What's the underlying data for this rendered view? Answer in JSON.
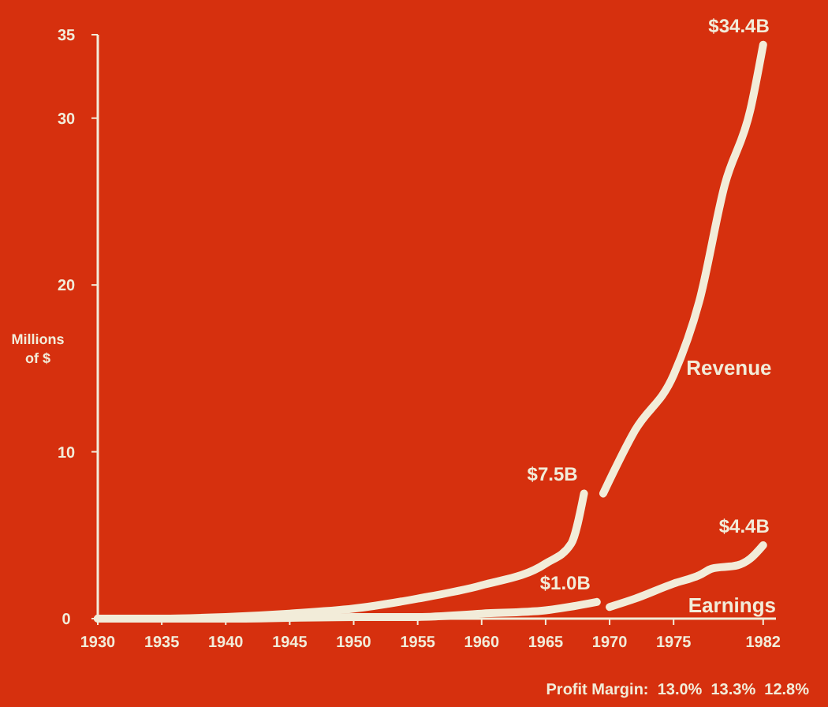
{
  "chart_data": {
    "type": "line",
    "ylabel": "Millions of $",
    "xlim": [
      1930,
      1983
    ],
    "ylim": [
      0,
      35
    ],
    "xticks": [
      1930,
      1935,
      1940,
      1945,
      1950,
      1955,
      1960,
      1965,
      1970,
      1975,
      1982
    ],
    "yticks": [
      0,
      10,
      20,
      30,
      35
    ],
    "series": [
      {
        "name": "Revenue",
        "color": "#f2ecd9",
        "x": [
          1930,
          1935,
          1940,
          1945,
          1950,
          1955,
          1960,
          1965,
          1967,
          1968,
          1969,
          1969.5,
          1972,
          1975,
          1977,
          1979,
          1981,
          1982
        ],
        "values": [
          0,
          0,
          0.1,
          0.3,
          0.6,
          1.2,
          2.0,
          3.3,
          4.5,
          7.5,
          null,
          7.5,
          11.3,
          14.6,
          19,
          26,
          30.5,
          34.4
        ]
      },
      {
        "name": "Earnings",
        "color": "#f2ecd9",
        "x": [
          1930,
          1940,
          1950,
          1955,
          1960,
          1965,
          1969,
          1969.5,
          1970,
          1972,
          1975,
          1977,
          1978,
          1980,
          1981,
          1982
        ],
        "values": [
          0,
          0,
          0.1,
          0.1,
          0.3,
          0.5,
          1.0,
          null,
          0.7,
          1.2,
          2.1,
          2.6,
          3.0,
          3.2,
          3.6,
          4.4
        ]
      }
    ],
    "annotations": [
      {
        "text": "$34.4B",
        "x": 1982,
        "y": 34.4
      },
      {
        "text": "$7.5B",
        "x": 1968,
        "y": 7.5
      },
      {
        "text": "$1.0B",
        "x": 1969,
        "y": 1.0
      },
      {
        "text": "$4.4B",
        "x": 1982,
        "y": 4.4
      },
      "Profit Margin:  13.0%  13.3%  12.8%"
    ]
  }
}
